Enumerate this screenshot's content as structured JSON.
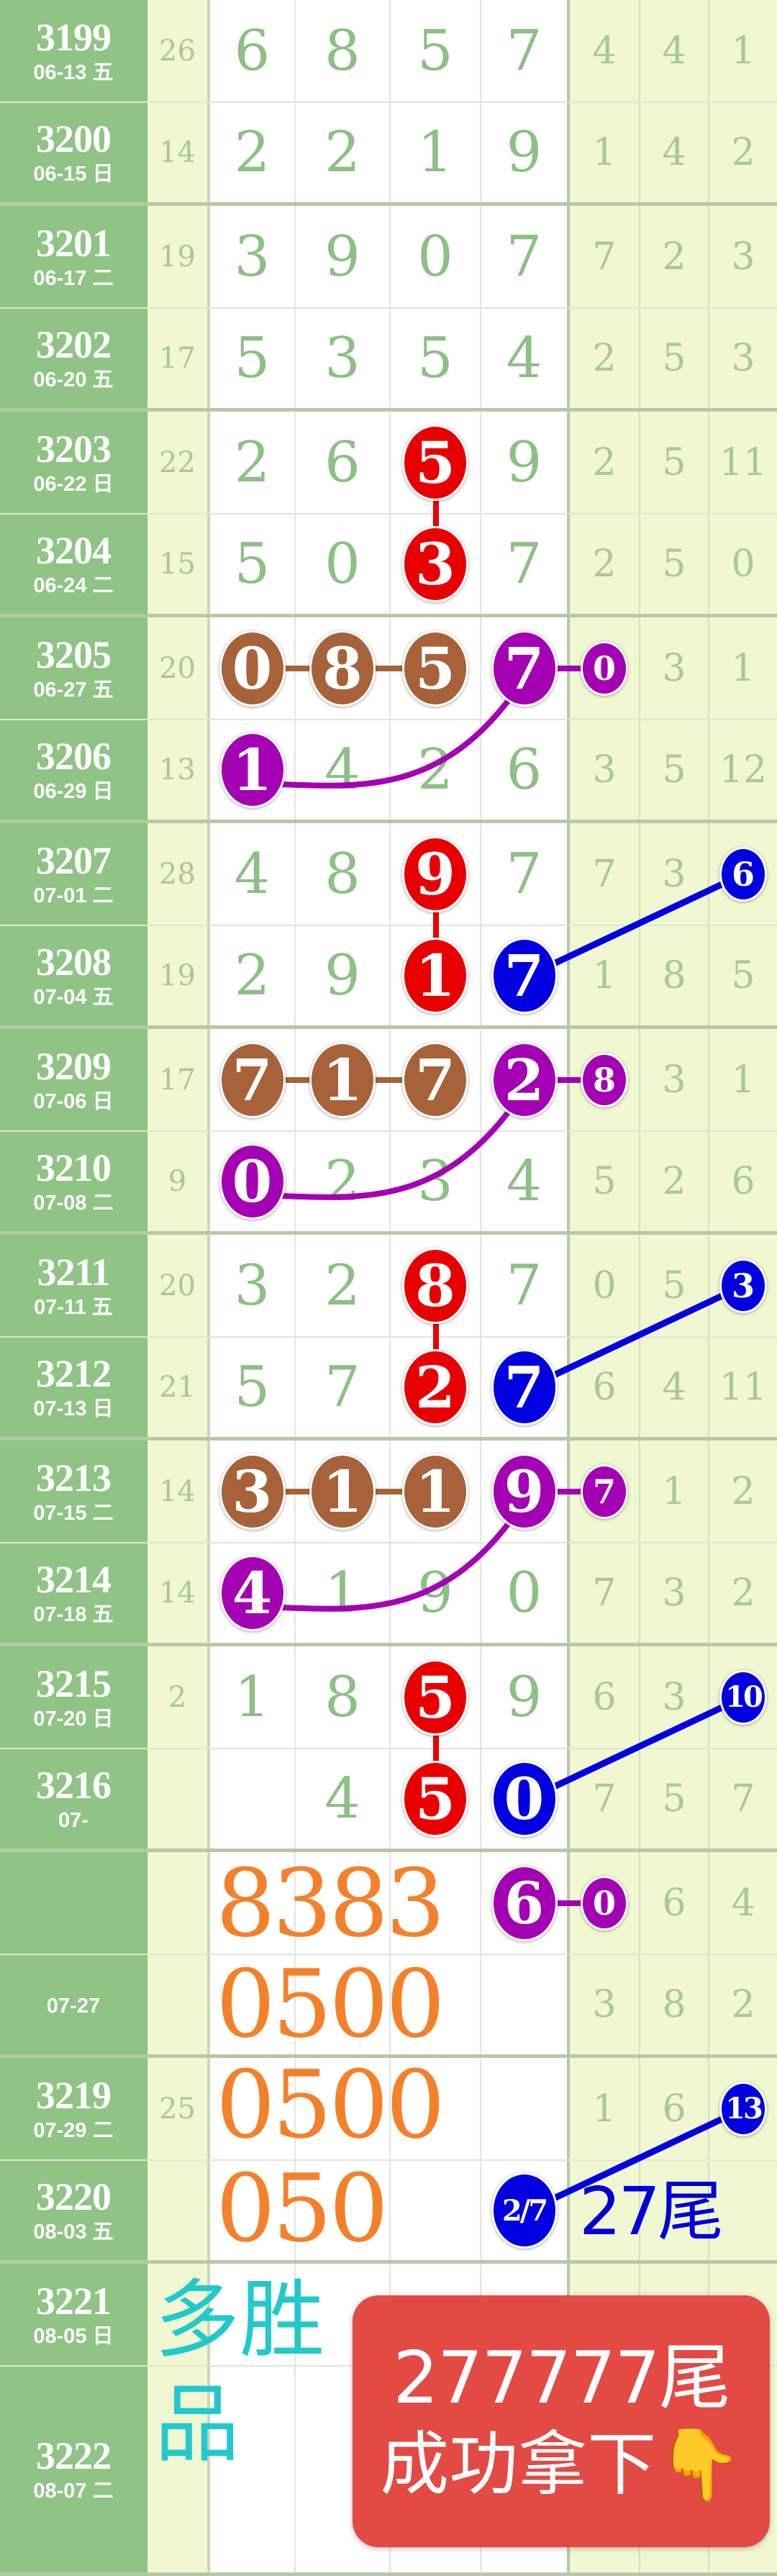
{
  "colors": {
    "red": "#e80000",
    "brown": "#a8623a",
    "purple": "#a400b4",
    "blue": "#0000e0"
  },
  "rows": [
    {
      "issue": "3199",
      "date": "06-13 五",
      "sum": "26",
      "cells": [
        "6",
        "8",
        "5",
        "7",
        "4",
        "4",
        "1"
      ]
    },
    {
      "issue": "3200",
      "date": "06-15 日",
      "sum": "14",
      "cells": [
        "2",
        "2",
        "1",
        "9",
        "1",
        "4",
        "2"
      ]
    },
    {
      "issue": "3201",
      "date": "06-17 二",
      "sum": "19",
      "cells": [
        "3",
        "9",
        "0",
        "7",
        "7",
        "2",
        "3"
      ]
    },
    {
      "issue": "3202",
      "date": "06-20 五",
      "sum": "17",
      "cells": [
        "5",
        "3",
        "5",
        "4",
        "2",
        "5",
        "3"
      ]
    },
    {
      "issue": "3203",
      "date": "06-22 日",
      "sum": "22",
      "cells": [
        "2",
        "6",
        "5",
        "9",
        "2",
        "5",
        "11"
      ],
      "balls": {
        "2": "red"
      }
    },
    {
      "issue": "3204",
      "date": "06-24 二",
      "sum": "15",
      "cells": [
        "5",
        "0",
        "3",
        "7",
        "2",
        "5",
        "0"
      ],
      "balls": {
        "2": "red"
      }
    },
    {
      "issue": "3205",
      "date": "06-27 五",
      "sum": "20",
      "cells": [
        "0",
        "8",
        "5",
        "7",
        "0",
        "3",
        "1"
      ],
      "balls": {
        "0": "brown",
        "1": "brown",
        "2": "brown",
        "3": "purple",
        "4": "purple"
      }
    },
    {
      "issue": "3206",
      "date": "06-29 日",
      "sum": "13",
      "cells": [
        "1",
        "4",
        "2",
        "6",
        "3",
        "5",
        "12"
      ],
      "balls": {
        "0": "purple"
      }
    },
    {
      "issue": "3207",
      "date": "07-01 二",
      "sum": "28",
      "cells": [
        "4",
        "8",
        "9",
        "7",
        "7",
        "3",
        "6"
      ],
      "balls": {
        "2": "red",
        "6": "blue"
      }
    },
    {
      "issue": "3208",
      "date": "07-04 五",
      "sum": "19",
      "cells": [
        "2",
        "9",
        "1",
        "7",
        "1",
        "8",
        "5"
      ],
      "balls": {
        "2": "red",
        "3": "blue"
      }
    },
    {
      "issue": "3209",
      "date": "07-06 日",
      "sum": "17",
      "cells": [
        "7",
        "1",
        "7",
        "2",
        "8",
        "3",
        "1"
      ],
      "balls": {
        "0": "brown",
        "1": "brown",
        "2": "brown",
        "3": "purple",
        "4": "purple"
      }
    },
    {
      "issue": "3210",
      "date": "07-08 二",
      "sum": "9",
      "cells": [
        "0",
        "2",
        "3",
        "4",
        "5",
        "2",
        "6"
      ],
      "balls": {
        "0": "purple"
      }
    },
    {
      "issue": "3211",
      "date": "07-11 五",
      "sum": "20",
      "cells": [
        "3",
        "2",
        "8",
        "7",
        "0",
        "5",
        "3"
      ],
      "balls": {
        "2": "red",
        "6": "blue"
      }
    },
    {
      "issue": "3212",
      "date": "07-13 日",
      "sum": "21",
      "cells": [
        "5",
        "7",
        "2",
        "7",
        "6",
        "4",
        "11"
      ],
      "balls": {
        "2": "red",
        "3": "blue"
      }
    },
    {
      "issue": "3213",
      "date": "07-15 二",
      "sum": "14",
      "cells": [
        "3",
        "1",
        "1",
        "9",
        "7",
        "1",
        "2"
      ],
      "balls": {
        "0": "brown",
        "1": "brown",
        "2": "brown",
        "3": "purple",
        "4": "purple"
      }
    },
    {
      "issue": "3214",
      "date": "07-18 五",
      "sum": "14",
      "cells": [
        "4",
        "1",
        "9",
        "0",
        "7",
        "3",
        "2"
      ],
      "balls": {
        "0": "purple"
      }
    },
    {
      "issue": "3215",
      "date": "07-20 日",
      "sum": "2",
      "cells": [
        "1",
        "8",
        "5",
        "9",
        "6",
        "3",
        "10"
      ],
      "balls": {
        "2": "red",
        "6": "blue"
      }
    },
    {
      "issue": "3216",
      "date": "07-",
      "sum": "",
      "cells": [
        "",
        "4",
        "5",
        "0",
        "7",
        "5",
        "7"
      ],
      "balls": {
        "2": "red",
        "3": "blue"
      }
    },
    {
      "issue": "",
      "date": "",
      "sum": "",
      "cells": [
        "",
        "",
        "",
        "6",
        "0",
        "6",
        "4"
      ],
      "balls": {
        "3": "purple",
        "4": "purple"
      }
    },
    {
      "issue": "",
      "date": "07-27",
      "sum": "",
      "cells": [
        "",
        "",
        "",
        "",
        "3",
        "8",
        "2"
      ]
    },
    {
      "issue": "3219",
      "date": "07-29 二",
      "sum": "25",
      "cells": [
        "",
        "",
        "",
        "",
        "1",
        "6",
        "13"
      ],
      "balls": {
        "6": "blue"
      }
    },
    {
      "issue": "3220",
      "date": "08-03 五",
      "sum": "",
      "cells": [
        "",
        "",
        "",
        "2/7",
        "",
        "",
        ""
      ],
      "balls": {
        "3": "blue"
      }
    },
    {
      "issue": "3221",
      "date": "08-05 日",
      "sum": "",
      "cells": [
        "",
        "",
        "",
        "",
        "",
        "",
        ""
      ]
    },
    {
      "issue": "3222",
      "date": "08-07 二",
      "sum": "",
      "cells": [
        "",
        "",
        "",
        "",
        "",
        "",
        ""
      ]
    }
  ],
  "links": [
    {
      "from": [
        4,
        2
      ],
      "to": [
        5,
        2
      ],
      "color": "red"
    },
    {
      "from": [
        6,
        0
      ],
      "to": [
        6,
        1
      ],
      "color": "brown"
    },
    {
      "from": [
        6,
        1
      ],
      "to": [
        6,
        2
      ],
      "color": "brown"
    },
    {
      "from": [
        6,
        3
      ],
      "to": [
        6,
        4
      ],
      "color": "purple"
    },
    {
      "from": [
        6,
        3
      ],
      "to": [
        7,
        0
      ],
      "color": "purple",
      "curve": true
    },
    {
      "from": [
        8,
        2
      ],
      "to": [
        9,
        2
      ],
      "color": "red"
    },
    {
      "from": [
        8,
        6
      ],
      "to": [
        9,
        3
      ],
      "color": "blue"
    },
    {
      "from": [
        10,
        0
      ],
      "to": [
        10,
        1
      ],
      "color": "brown"
    },
    {
      "from": [
        10,
        1
      ],
      "to": [
        10,
        2
      ],
      "color": "brown"
    },
    {
      "from": [
        10,
        3
      ],
      "to": [
        10,
        4
      ],
      "color": "purple"
    },
    {
      "from": [
        10,
        3
      ],
      "to": [
        11,
        0
      ],
      "color": "purple",
      "curve": true
    },
    {
      "from": [
        12,
        2
      ],
      "to": [
        13,
        2
      ],
      "color": "red"
    },
    {
      "from": [
        12,
        6
      ],
      "to": [
        13,
        3
      ],
      "color": "blue"
    },
    {
      "from": [
        14,
        0
      ],
      "to": [
        14,
        1
      ],
      "color": "brown"
    },
    {
      "from": [
        14,
        1
      ],
      "to": [
        14,
        2
      ],
      "color": "brown"
    },
    {
      "from": [
        14,
        3
      ],
      "to": [
        14,
        4
      ],
      "color": "purple"
    },
    {
      "from": [
        14,
        3
      ],
      "to": [
        15,
        0
      ],
      "color": "purple",
      "curve": true
    },
    {
      "from": [
        16,
        2
      ],
      "to": [
        17,
        2
      ],
      "color": "red"
    },
    {
      "from": [
        16,
        6
      ],
      "to": [
        17,
        3
      ],
      "color": "blue"
    },
    {
      "from": [
        18,
        3
      ],
      "to": [
        18,
        4
      ],
      "color": "purple"
    },
    {
      "from": [
        20,
        6
      ],
      "to": [
        21,
        3
      ],
      "color": "blue"
    }
  ],
  "overlays": {
    "n1": "8383",
    "n2": "0500",
    "n3": "0500",
    "n4": "050",
    "cyan1": "多胜",
    "cyan2": "品",
    "tail": "27尾",
    "card_line1": "277777尾",
    "card_line2": "成功拿下👇"
  }
}
